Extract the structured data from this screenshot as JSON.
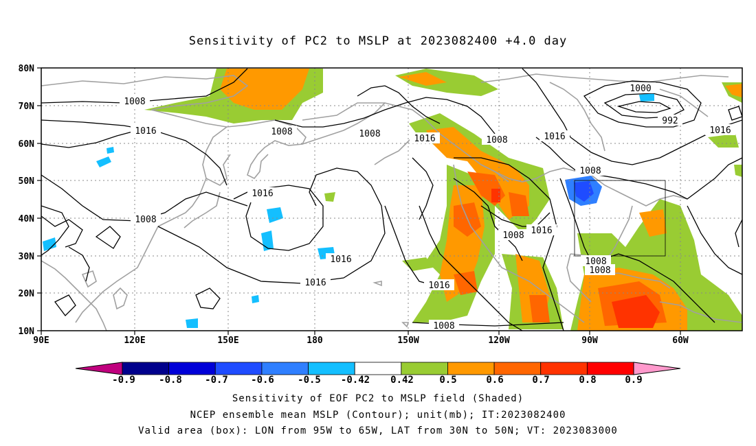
{
  "title": "Sensitivity of PC2 to MSLP at 2023082400 +4.0 day",
  "map": {
    "lat_labels": [
      "80N",
      "70N",
      "60N",
      "50N",
      "40N",
      "30N",
      "20N",
      "10N"
    ],
    "lon_labels": [
      "90E",
      "120E",
      "150E",
      "180",
      "150W",
      "120W",
      "90W",
      "60W"
    ],
    "lon_range_deg": [
      90,
      325
    ],
    "lat_range_deg": [
      10,
      80
    ],
    "grid": "dotted",
    "contour_labels": [
      "1008",
      "1016",
      "1008",
      "1016",
      "1008",
      "1016",
      "1016",
      "1016",
      "1008",
      "1016",
      "1008",
      "1000",
      "992",
      "1016",
      "1008",
      "1016",
      "1008",
      "1008",
      "1008",
      "1016",
      "1016",
      "1008"
    ],
    "valid_box": {
      "lon_from": "95W",
      "lon_to": "65W",
      "lat_from": "30N",
      "lat_to": "50N"
    }
  },
  "colorbar": {
    "labels": [
      "-0.9",
      "-0.8",
      "-0.7",
      "-0.6",
      "-0.5",
      "-0.42",
      "0.42",
      "0.5",
      "0.6",
      "0.7",
      "0.8",
      "0.9"
    ],
    "colors": [
      "#00008c",
      "#0000d8",
      "#1f4cff",
      "#2f7fff",
      "#14bfff",
      "#ffffff",
      "#99cc33",
      "#ff9900",
      "#ff6600",
      "#ff3300",
      "#ff0000"
    ],
    "low_end_color": "#c0007e",
    "high_end_color": "#ff99cc"
  },
  "captions": {
    "line1": "Sensitivity of EOF PC2 to MSLP field (Shaded)",
    "line2": "NCEP ensemble mean MSLP (Contour); unit(mb); IT:2023082400",
    "line3": "Valid area (box): LON from 95W to 65W, LAT from 30N to 50N; VT: 2023083000"
  }
}
